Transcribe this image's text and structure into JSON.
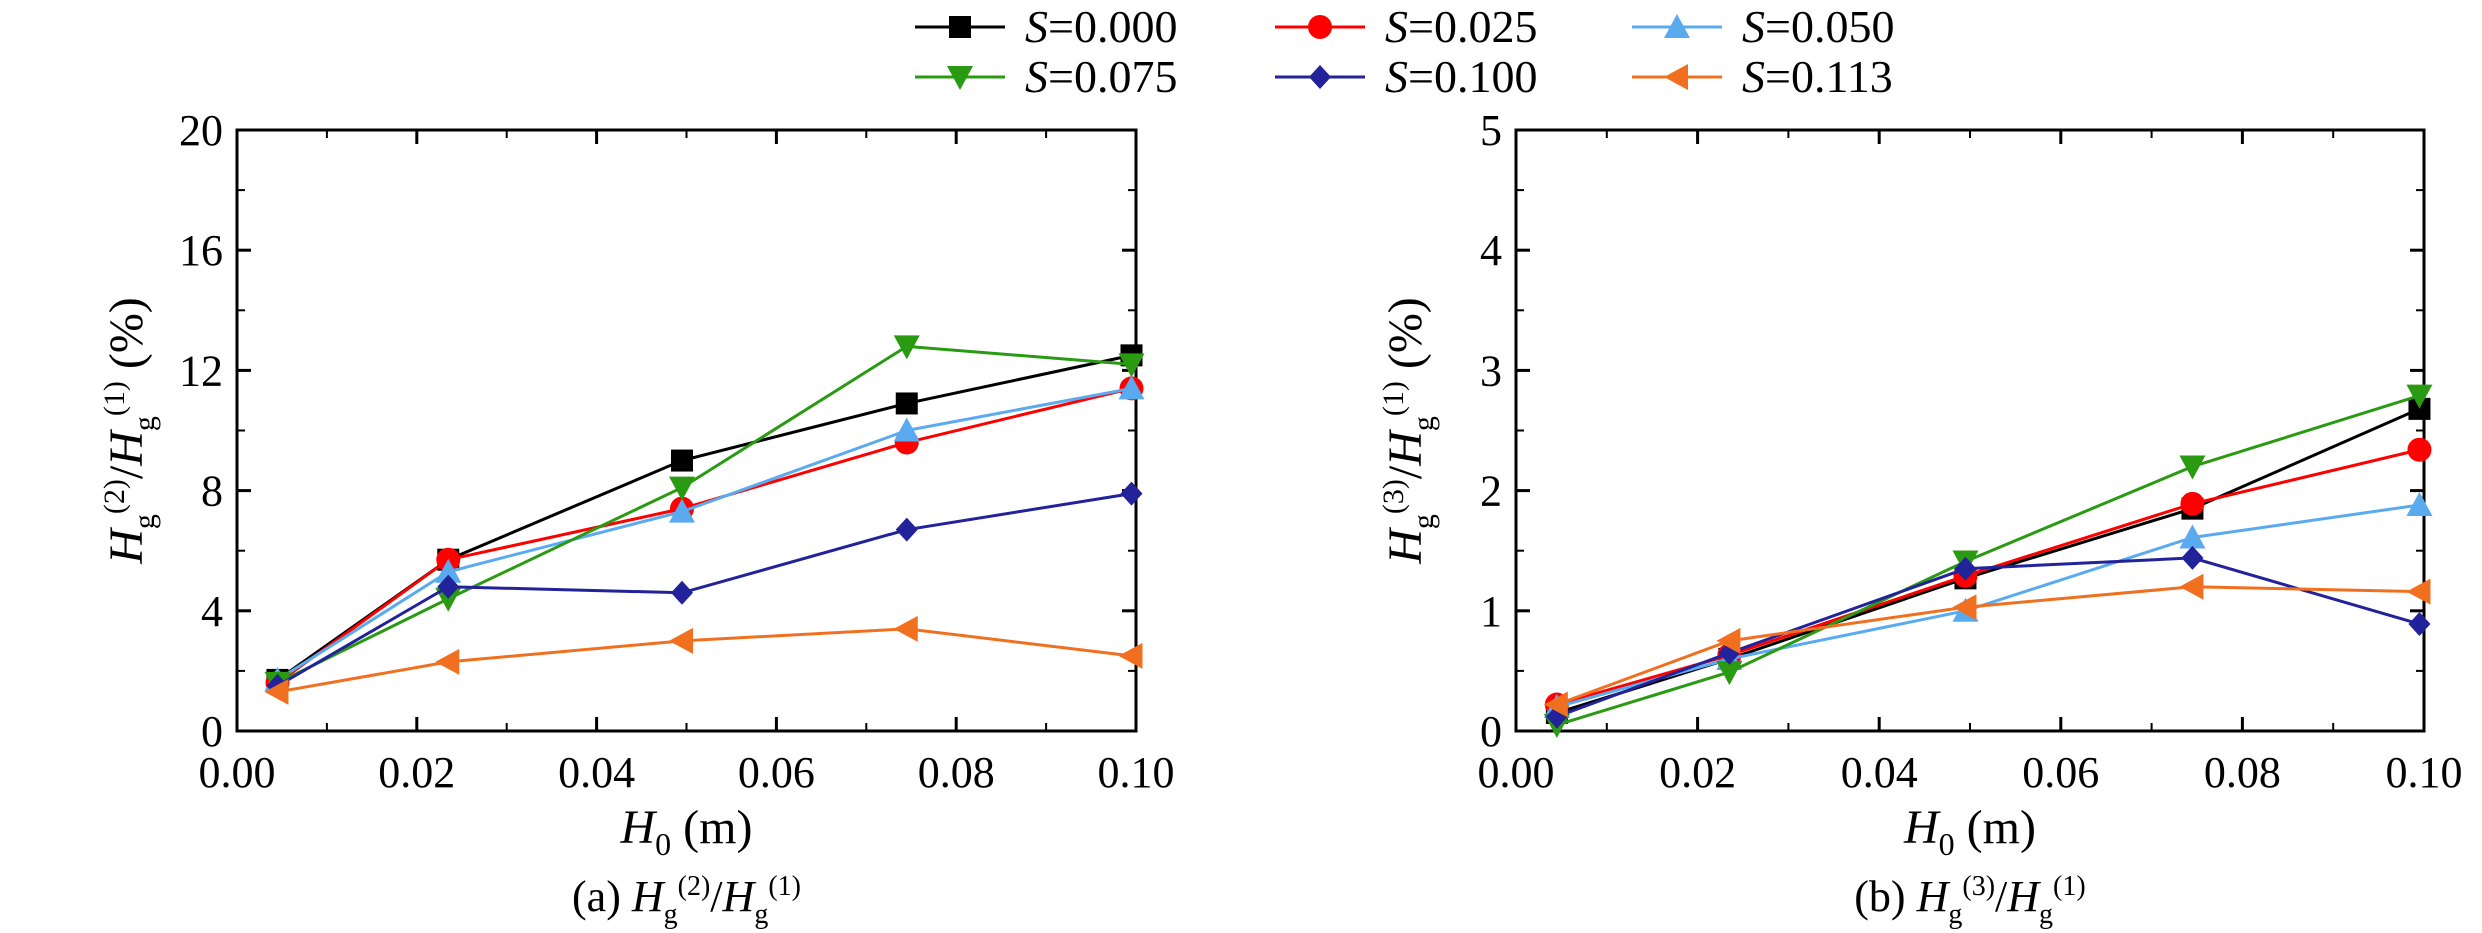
{
  "legend": {
    "items": [
      {
        "symbol": "S",
        "equals": "=0.000",
        "color": "#000000",
        "marker": "square"
      },
      {
        "symbol": "S",
        "equals": "=0.025",
        "color": "#ff0000",
        "marker": "circle"
      },
      {
        "symbol": "S",
        "equals": "=0.050",
        "color": "#5aaaf0",
        "marker": "triangle-up"
      },
      {
        "symbol": "S",
        "equals": "=0.075",
        "color": "#2a9a12",
        "marker": "triangle-down"
      },
      {
        "symbol": "S",
        "equals": "=0.100",
        "color": "#22229a",
        "marker": "diamond"
      },
      {
        "symbol": "S",
        "equals": "=0.113",
        "color": "#f07020",
        "marker": "triangle-left"
      }
    ]
  },
  "chart_data": [
    {
      "type": "line",
      "caption": {
        "prefix": "(a) ",
        "num_base": "H",
        "num_sub": "g",
        "num_sup": "(2)",
        "sep": "/",
        "den_base": "H",
        "den_sub": "g",
        "den_sup": "(1)"
      },
      "xlabel": {
        "base": "H",
        "sub": "0",
        "unit": " (m)"
      },
      "ylabel": {
        "num_base": "H",
        "num_sub": "g",
        "num_sup": "(2)",
        "sep": "/",
        "den_base": "H",
        "den_sub": "g",
        "den_sup": "(1)",
        "unit": " (%)"
      },
      "xlim": [
        0,
        0.1
      ],
      "ylim": [
        0,
        20
      ],
      "xticks": [
        "0.00",
        "0.02",
        "0.04",
        "0.06",
        "0.08",
        "0.10"
      ],
      "yticks": [
        "0",
        "4",
        "8",
        "12",
        "16",
        "20"
      ],
      "x": [
        0.0045,
        0.0235,
        0.0495,
        0.0745,
        0.0995
      ],
      "series": [
        {
          "name": "S=0.000",
          "values": [
            1.7,
            5.7,
            9.0,
            10.9,
            12.5
          ]
        },
        {
          "name": "S=0.025",
          "values": [
            1.6,
            5.7,
            7.4,
            9.6,
            11.4
          ]
        },
        {
          "name": "S=0.050",
          "values": [
            1.7,
            5.3,
            7.3,
            10.0,
            11.4
          ]
        },
        {
          "name": "S=0.075",
          "values": [
            1.6,
            4.4,
            8.1,
            12.8,
            12.2
          ]
        },
        {
          "name": "S=0.100",
          "values": [
            1.5,
            4.8,
            4.6,
            6.7,
            7.9
          ]
        },
        {
          "name": "S=0.113",
          "values": [
            1.3,
            2.3,
            3.0,
            3.4,
            2.5
          ]
        }
      ],
      "grid": false,
      "legend": "top"
    },
    {
      "type": "line",
      "caption": {
        "prefix": "(b) ",
        "num_base": "H",
        "num_sub": "g",
        "num_sup": "(3)",
        "sep": "/",
        "den_base": "H",
        "den_sub": "g",
        "den_sup": "(1)"
      },
      "xlabel": {
        "base": "H",
        "sub": "0",
        "unit": " (m)"
      },
      "ylabel": {
        "num_base": "H",
        "num_sub": "g",
        "num_sup": "(3)",
        "sep": "/",
        "den_base": "H",
        "den_sub": "g",
        "den_sup": "(1)",
        "unit": " (%)"
      },
      "xlim": [
        0,
        0.1
      ],
      "ylim": [
        0,
        5
      ],
      "xticks": [
        "0.00",
        "0.02",
        "0.04",
        "0.06",
        "0.08",
        "0.10"
      ],
      "yticks": [
        "0",
        "1",
        "2",
        "3",
        "4",
        "5"
      ],
      "x": [
        0.0045,
        0.0235,
        0.0495,
        0.0745,
        0.0995
      ],
      "series": [
        {
          "name": "S=0.000",
          "values": [
            0.15,
            0.6,
            1.27,
            1.85,
            2.68
          ]
        },
        {
          "name": "S=0.025",
          "values": [
            0.22,
            0.63,
            1.29,
            1.89,
            2.34
          ]
        },
        {
          "name": "S=0.050",
          "values": [
            0.2,
            0.6,
            1.0,
            1.61,
            1.88
          ]
        },
        {
          "name": "S=0.075",
          "values": [
            0.05,
            0.49,
            1.41,
            2.2,
            2.79
          ]
        },
        {
          "name": "S=0.100",
          "values": [
            0.12,
            0.65,
            1.35,
            1.44,
            0.89
          ]
        },
        {
          "name": "S=0.113",
          "values": [
            0.22,
            0.75,
            1.03,
            1.2,
            1.16
          ]
        }
      ],
      "grid": false,
      "legend": "top"
    }
  ]
}
